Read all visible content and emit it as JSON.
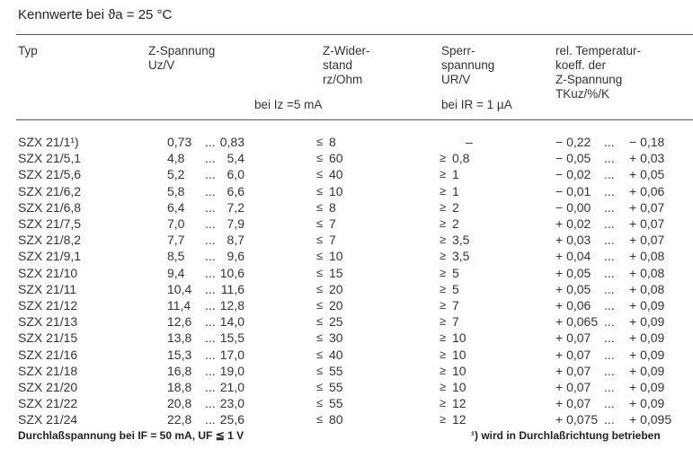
{
  "title": "Kennwerte bei ϑa = 25 °C",
  "headers": {
    "typ": "Typ",
    "uz": [
      "Z-Spannung",
      "Uz/V"
    ],
    "rz": [
      "Z-Wider-",
      "stand",
      "rz/Ohm"
    ],
    "ur": [
      "Sperr-",
      "spannung",
      "UR/V"
    ],
    "tk": [
      "rel. Temperatur-",
      "koeff. der",
      "Z-Spannung",
      "TKuz/%/K"
    ],
    "cond_iz": "bei Iz =5 mA",
    "cond_ir": "bei IR = 1 µA"
  },
  "rows": [
    {
      "typ": "SZX 21/1¹)",
      "uz_min": "0,73",
      "uz_max": "0,83",
      "rz": "8",
      "ur": "–",
      "ur_sym": "",
      "tk_min": "− 0,22",
      "tk_max": "− 0,18"
    },
    {
      "typ": "SZX 21/5,1",
      "uz_min": "4,8",
      "uz_max": "5,4",
      "rz": "60",
      "ur": "0,8",
      "ur_sym": "≥",
      "tk_min": "− 0,05",
      "tk_max": "+ 0,03"
    },
    {
      "typ": "SZX 21/5,6",
      "uz_min": "5,2",
      "uz_max": "6,0",
      "rz": "40",
      "ur": "1",
      "ur_sym": "≥",
      "tk_min": "− 0,02",
      "tk_max": "+ 0,05"
    },
    {
      "typ": "SZX 21/6,2",
      "uz_min": "5,8",
      "uz_max": "6,6",
      "rz": "10",
      "ur": "1",
      "ur_sym": "≥",
      "tk_min": "− 0,01",
      "tk_max": "+ 0,06"
    },
    {
      "typ": "SZX 21/6,8",
      "uz_min": "6,4",
      "uz_max": "7,2",
      "rz": "8",
      "ur": "2",
      "ur_sym": "≥",
      "tk_min": "− 0,00",
      "tk_max": "+ 0,07"
    },
    {
      "typ": "SZX 21/7,5",
      "uz_min": "7,0",
      "uz_max": "7,9",
      "rz": "7",
      "ur": "2",
      "ur_sym": "≥",
      "tk_min": "+ 0,02",
      "tk_max": "+ 0,07"
    },
    {
      "typ": "SZX 21/8,2",
      "uz_min": "7,7",
      "uz_max": "8,7",
      "rz": "7",
      "ur": "3,5",
      "ur_sym": "≥",
      "tk_min": "+ 0,03",
      "tk_max": "+ 0,07"
    },
    {
      "typ": "SZX 21/9,1",
      "uz_min": "8,5",
      "uz_max": "9,6",
      "rz": "10",
      "ur": "3,5",
      "ur_sym": "≥",
      "tk_min": "+ 0,04",
      "tk_max": "+ 0,08"
    },
    {
      "typ": "SZX 21/10",
      "uz_min": "9,4",
      "uz_max": "10,6",
      "rz": "15",
      "ur": "5",
      "ur_sym": "≥",
      "tk_min": "+ 0,05",
      "tk_max": "+ 0,08"
    },
    {
      "typ": "SZX 21/11",
      "uz_min": "10,4",
      "uz_max": "11,6",
      "rz": "20",
      "ur": "5",
      "ur_sym": "≥",
      "tk_min": "+ 0,05",
      "tk_max": "+ 0,08"
    },
    {
      "typ": "SZX 21/12",
      "uz_min": "11,4",
      "uz_max": "12,8",
      "rz": "20",
      "ur": "7",
      "ur_sym": "≥",
      "tk_min": "+ 0,06",
      "tk_max": "+ 0,09"
    },
    {
      "typ": "SZX 21/13",
      "uz_min": "12,6",
      "uz_max": "14,0",
      "rz": "25",
      "ur": "7",
      "ur_sym": "≥",
      "tk_min": "+ 0,065",
      "tk_max": "+ 0,09"
    },
    {
      "typ": "SZX 21/15",
      "uz_min": "13,8",
      "uz_max": "15,5",
      "rz": "30",
      "ur": "10",
      "ur_sym": "≥",
      "tk_min": "+ 0,07",
      "tk_max": "+ 0,09"
    },
    {
      "typ": "SZX 21/16",
      "uz_min": "15,3",
      "uz_max": "17,0",
      "rz": "40",
      "ur": "10",
      "ur_sym": "≥",
      "tk_min": "+ 0,07",
      "tk_max": "+ 0,09"
    },
    {
      "typ": "SZX 21/18",
      "uz_min": "16,8",
      "uz_max": "19,0",
      "rz": "55",
      "ur": "10",
      "ur_sym": "≥",
      "tk_min": "+ 0,07",
      "tk_max": "+ 0,09"
    },
    {
      "typ": "SZX 21/20",
      "uz_min": "18,8",
      "uz_max": "21,0",
      "rz": "55",
      "ur": "10",
      "ur_sym": "≥",
      "tk_min": "+ 0,07",
      "tk_max": "+ 0,09"
    },
    {
      "typ": "SZX 21/22",
      "uz_min": "20,8",
      "uz_max": "23,0",
      "rz": "55",
      "ur": "12",
      "ur_sym": "≥",
      "tk_min": "+ 0,07",
      "tk_max": "+ 0,09"
    },
    {
      "typ": "SZX 21/24",
      "uz_min": "22,8",
      "uz_max": "25,6",
      "rz": "80",
      "ur": "12",
      "ur_sym": "≥",
      "tk_min": "+ 0,075",
      "tk_max": "+ 0,095"
    }
  ],
  "symbols": {
    "le": "≤",
    "dots": "..."
  },
  "footer": {
    "left": "Durchlaßspannung bei IF = 50 mA, UF ≦ 1 V",
    "right": "¹) wird in Durchlaßrichtung betrieben"
  }
}
